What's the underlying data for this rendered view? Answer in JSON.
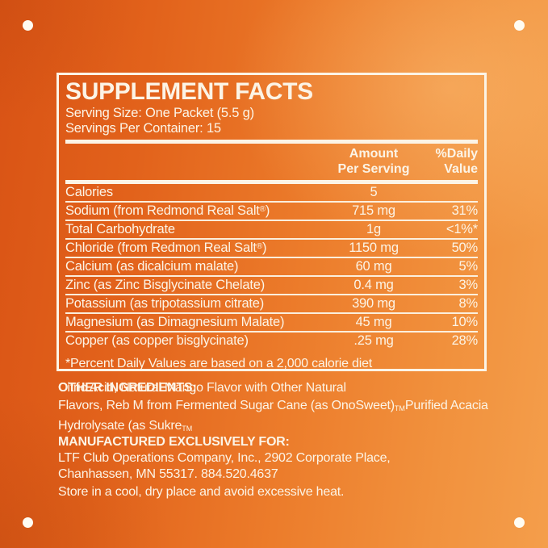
{
  "colors": {
    "background_dark_orange": "#D95315",
    "background_light_orange": "#F49E4B",
    "ink": "#FCF4E6",
    "dot": "#FFFCF2"
  },
  "panel": {
    "title": "SUPPLEMENT FACTS",
    "serving_size": "Serving Size: One Packet (5.5 g)",
    "servings_per_container": "Servings Per Container: 15",
    "amount_header": "Amount\nPer Serving",
    "dv_header": "%Daily\nValue",
    "rows": [
      {
        "label": "Calories",
        "amount": "5",
        "dv": ""
      },
      {
        "label": "Sodium (from Redmond Real Salt®)",
        "amount": "715 mg",
        "dv": "31%"
      },
      {
        "label": "Total Carbohydrate",
        "amount": "1g",
        "dv": "<1%*"
      },
      {
        "label": "Chloride (from Redmon Real Salt®)",
        "amount": "1150 mg",
        "dv": "50%"
      },
      {
        "label": "Calcium (as dicalcium malate)",
        "amount": "60 mg",
        "dv": "5%"
      },
      {
        "label": "Zinc (as Zinc Bisglycinate Chelate)",
        "amount": "0.4 mg",
        "dv": "3%"
      },
      {
        "label": "Potassium (as tripotassium citrate)",
        "amount": "390 mg",
        "dv": "8%"
      },
      {
        "label": "Magnesium (as Dimagnesium Malate)",
        "amount": "45 mg",
        "dv": "10%"
      },
      {
        "label": "Copper (as copper bisglycinate)",
        "amount": ".25 mg",
        "dv": "28%"
      }
    ],
    "footnote": "*Percent Daily Values are based on a 2,000 calorie diet"
  },
  "other_ingredients": {
    "label": "OTHER INGREDIENTS:",
    "underlay_line1": "Citric Acid, Natural Mango Flavor with Other Natural",
    "line2_part1": "Flavors, Reb M from Fermented Sugar Cane (as OnoSweet)",
    "line2_tm": "TM",
    "line2_part2": "Purified Acacia",
    "line3_part1": "Hydrolysate (as Sukre",
    "line3_tm": "TM"
  },
  "manufactured": {
    "label": "MANUFACTURED EXCLUSIVELY FOR:",
    "line1": "LTF Club Operations Company, Inc., 2902 Corporate Place,",
    "line2": "Chanhassen, MN 55317. 884.520.4637"
  },
  "storage_note": "Store in a cool, dry place and avoid excessive heat."
}
